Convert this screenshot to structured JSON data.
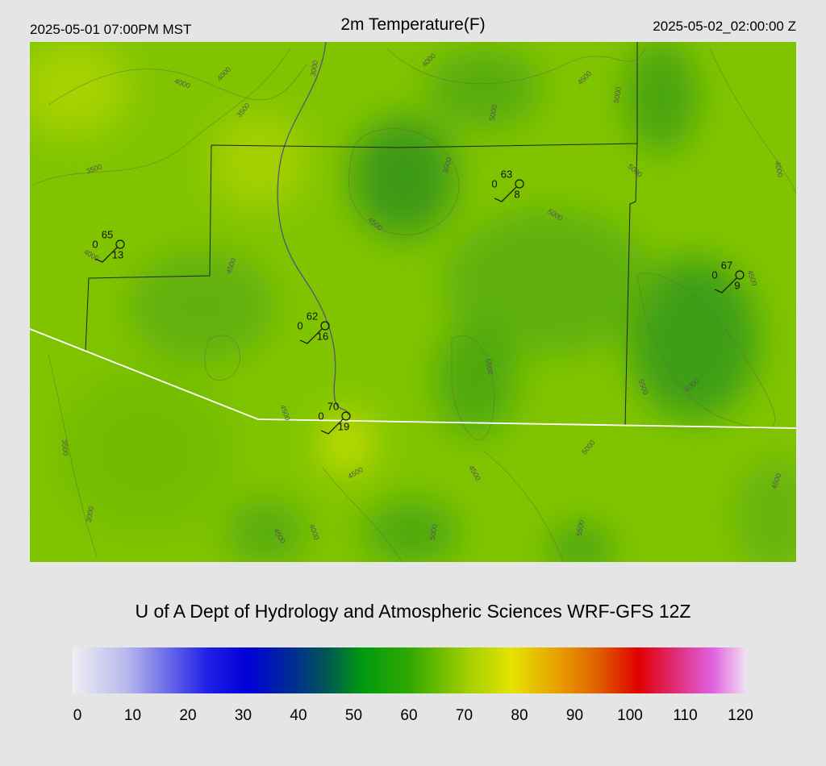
{
  "header": {
    "local_time": "2025-05-01 07:00PM MST",
    "title": "2m Temperature(F)",
    "valid_time": "2025-05-02_02:00:00 Z"
  },
  "map": {
    "contour_labels": [
      3000,
      4000,
      4000,
      4000,
      3500,
      4500,
      5000,
      5000,
      3500,
      3500,
      5000,
      4000,
      4500,
      5000,
      4000,
      4500,
      4500,
      5500,
      5500,
      6000,
      4500,
      3500,
      5000,
      4500,
      4500,
      4500,
      3000,
      4000,
      4500,
      5000,
      5500
    ],
    "stations": [
      {
        "temperature": 65,
        "dewpoint": 0,
        "wind_speed": 13
      },
      {
        "temperature": 63,
        "dewpoint": 0,
        "wind_speed": 8
      },
      {
        "temperature": 67,
        "dewpoint": 0,
        "wind_speed": 9
      },
      {
        "temperature": 62,
        "dewpoint": 0,
        "wind_speed": 16
      },
      {
        "temperature": 70,
        "dewpoint": 0,
        "wind_speed": 19
      }
    ]
  },
  "credit": "U of A Dept of Hydrology and Atmospheric Sciences WRF-GFS 12Z",
  "colorbar": {
    "ticks": [
      0,
      10,
      20,
      30,
      40,
      50,
      60,
      70,
      80,
      90,
      100,
      110,
      120
    ]
  }
}
